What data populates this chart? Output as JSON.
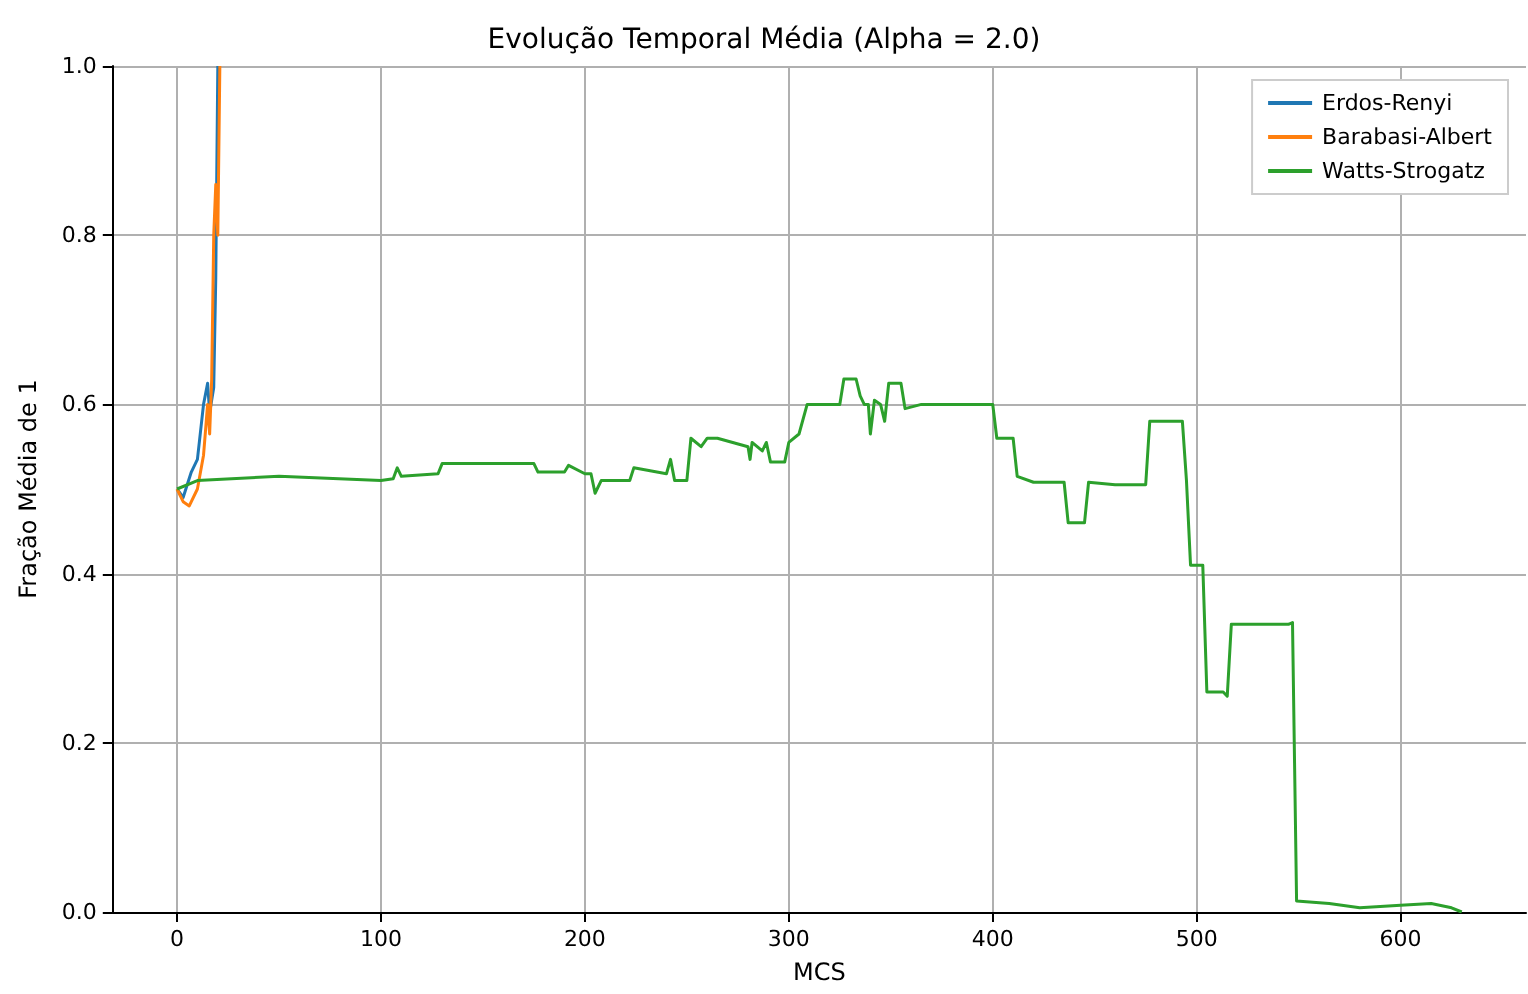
{
  "chart_data": {
    "type": "line",
    "title": "Evolução Temporal Média (Alpha = 2.0)",
    "xlabel": "MCS",
    "ylabel": "Fração Média de 1",
    "xlim": [
      -31.5,
      661.5
    ],
    "xticks": [
      0,
      100,
      200,
      300,
      400,
      500,
      600
    ],
    "ylim": [
      0,
      1
    ],
    "yticks": [
      {
        "value": 0,
        "label": "0.0"
      },
      {
        "value": 0.2,
        "label": "0.2"
      },
      {
        "value": 0.4,
        "label": "0.4"
      },
      {
        "value": 0.6,
        "label": "0.6"
      },
      {
        "value": 0.8,
        "label": "0.8"
      },
      {
        "value": 1,
        "label": "1.0"
      }
    ],
    "grid": true,
    "legend": "top right",
    "marker": "none",
    "line_style": "solid",
    "series": [
      {
        "name": "Erdos-Renyi",
        "color": "#1f77b4",
        "x": [
          0,
          3,
          7,
          10,
          13,
          15,
          16,
          18,
          19,
          20
        ],
        "values": [
          0.5,
          0.49,
          0.52,
          0.535,
          0.6,
          0.625,
          0.59,
          0.62,
          0.75,
          1.0
        ]
      },
      {
        "name": "Barabasi-Albert",
        "color": "#ff7f0e",
        "x": [
          0,
          3,
          6,
          10,
          13,
          14,
          15,
          16,
          17,
          18,
          19,
          20,
          21
        ],
        "values": [
          0.5,
          0.485,
          0.48,
          0.5,
          0.54,
          0.57,
          0.6,
          0.565,
          0.63,
          0.8,
          0.86,
          0.8,
          1.0
        ]
      },
      {
        "name": "Watts-Strogatz",
        "color": "#2ca02c",
        "x": [
          0,
          10,
          50,
          100,
          106,
          108,
          110,
          128,
          130,
          175,
          177,
          190,
          192,
          200,
          203,
          205,
          208,
          222,
          224,
          240,
          242,
          244,
          250,
          252,
          257,
          260,
          265,
          280,
          281,
          282,
          287,
          289,
          291,
          298,
          300,
          305,
          309,
          325,
          327,
          333,
          335,
          337,
          339,
          340,
          342,
          345,
          347,
          349,
          355,
          357,
          365,
          400,
          402,
          410,
          412,
          420,
          435,
          437,
          445,
          447,
          460,
          475,
          477,
          493,
          495,
          497,
          503,
          505,
          513,
          515,
          517,
          545,
          547,
          549,
          565,
          580,
          600,
          615,
          625,
          630
        ],
        "values": [
          0.5,
          0.51,
          0.515,
          0.51,
          0.512,
          0.525,
          0.515,
          0.518,
          0.53,
          0.53,
          0.52,
          0.52,
          0.528,
          0.518,
          0.518,
          0.495,
          0.51,
          0.51,
          0.525,
          0.518,
          0.535,
          0.51,
          0.51,
          0.56,
          0.55,
          0.56,
          0.56,
          0.55,
          0.535,
          0.555,
          0.545,
          0.555,
          0.532,
          0.532,
          0.555,
          0.565,
          0.6,
          0.6,
          0.63,
          0.63,
          0.61,
          0.6,
          0.6,
          0.565,
          0.605,
          0.6,
          0.58,
          0.625,
          0.625,
          0.595,
          0.6,
          0.6,
          0.56,
          0.56,
          0.515,
          0.508,
          0.508,
          0.46,
          0.46,
          0.508,
          0.505,
          0.505,
          0.58,
          0.58,
          0.51,
          0.41,
          0.41,
          0.26,
          0.26,
          0.255,
          0.34,
          0.34,
          0.342,
          0.013,
          0.01,
          0.005,
          0.008,
          0.01,
          0.005,
          0
        ]
      }
    ]
  }
}
